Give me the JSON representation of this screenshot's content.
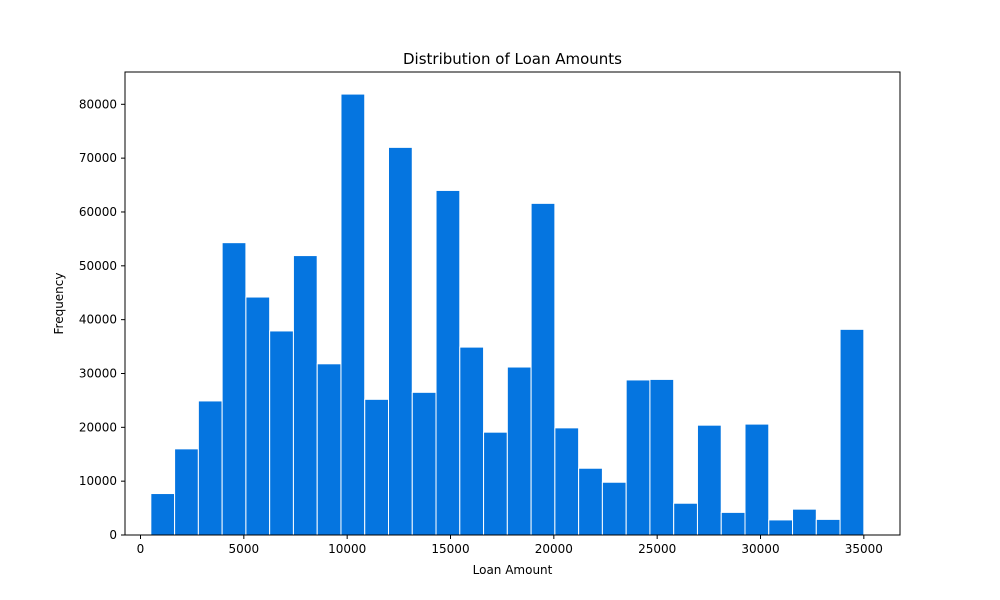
{
  "chart_data": {
    "type": "bar",
    "title": "Distribution of Loan Amounts",
    "xlabel": "Loan Amount",
    "ylabel": "Frequency",
    "xlim": [
      -750,
      36750
    ],
    "ylim": [
      0,
      86000
    ],
    "xticks": [
      0,
      5000,
      10000,
      15000,
      20000,
      25000,
      30000,
      35000
    ],
    "yticks": [
      0,
      10000,
      20000,
      30000,
      40000,
      50000,
      60000,
      70000,
      80000
    ],
    "bin_start": 500,
    "bin_width": 1150,
    "values": [
      7700,
      16000,
      24900,
      54300,
      44200,
      37900,
      51900,
      31800,
      81900,
      25200,
      72000,
      26500,
      64000,
      34900,
      19100,
      31200,
      61600,
      19900,
      12400,
      9800,
      28800,
      28900,
      5900,
      20400,
      4200,
      20600,
      2800,
      4800,
      2900,
      38200
    ],
    "bar_color": "#0575e0",
    "edge_color": "#ffffff",
    "grid": false,
    "legend": "none"
  }
}
